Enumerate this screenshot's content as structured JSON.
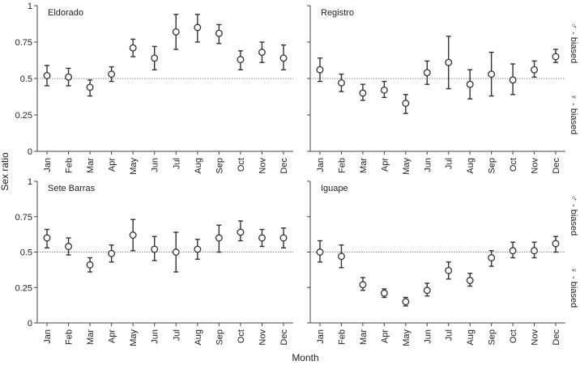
{
  "figure": {
    "ylabel": "Sex ratio",
    "xlabel": "Month",
    "male_label": "♂ - biased",
    "female_label": "♀ - biased"
  },
  "chart_data": [
    {
      "type": "scatter",
      "title": "Eldorado",
      "categories": [
        "Jan",
        "Feb",
        "Mar",
        "Apr",
        "May",
        "Jun",
        "Jul",
        "Aug",
        "Sep",
        "Oct",
        "Nov",
        "Dec"
      ],
      "values": [
        0.52,
        0.51,
        0.44,
        0.53,
        0.71,
        0.64,
        0.82,
        0.85,
        0.81,
        0.63,
        0.68,
        0.64
      ],
      "lower": [
        0.45,
        0.45,
        0.38,
        0.48,
        0.65,
        0.56,
        0.7,
        0.75,
        0.74,
        0.56,
        0.61,
        0.56
      ],
      "upper": [
        0.59,
        0.57,
        0.49,
        0.58,
        0.77,
        0.72,
        0.94,
        0.94,
        0.87,
        0.69,
        0.75,
        0.73
      ],
      "reference": 0.5,
      "ylim": [
        0,
        1
      ],
      "yticks": [
        0,
        0.25,
        0.5,
        0.75,
        1
      ],
      "ytick_labels": [
        "0",
        "0.25",
        "0.5",
        "0.75",
        "1"
      ]
    },
    {
      "type": "scatter",
      "title": "Registro",
      "categories": [
        "Jan",
        "Feb",
        "Mar",
        "Apr",
        "May",
        "Jun",
        "Jul",
        "Aug",
        "Sep",
        "Oct",
        "Nov",
        "Dec"
      ],
      "values": [
        0.56,
        0.47,
        0.4,
        0.42,
        0.33,
        0.54,
        0.61,
        0.46,
        0.53,
        0.49,
        0.56,
        0.65
      ],
      "lower": [
        0.48,
        0.41,
        0.35,
        0.37,
        0.26,
        0.46,
        0.43,
        0.36,
        0.38,
        0.39,
        0.51,
        0.61
      ],
      "upper": [
        0.64,
        0.53,
        0.46,
        0.48,
        0.39,
        0.62,
        0.79,
        0.56,
        0.68,
        0.6,
        0.62,
        0.7
      ],
      "reference": 0.5,
      "ylim": [
        0,
        1
      ],
      "yticks": [
        0,
        0.25,
        0.5,
        0.75,
        1
      ],
      "ytick_labels": [
        "",
        "",
        "",
        "",
        ""
      ]
    },
    {
      "type": "scatter",
      "title": "Sete Barras",
      "categories": [
        "Jan",
        "Feb",
        "Mar",
        "Apr",
        "May",
        "Jun",
        "Jul",
        "Aug",
        "Sep",
        "Oct",
        "Nov",
        "Dec"
      ],
      "values": [
        0.6,
        0.54,
        0.41,
        0.49,
        0.62,
        0.52,
        0.5,
        0.52,
        0.6,
        0.64,
        0.6,
        0.6
      ],
      "lower": [
        0.53,
        0.48,
        0.36,
        0.43,
        0.51,
        0.44,
        0.36,
        0.45,
        0.5,
        0.58,
        0.54,
        0.53
      ],
      "upper": [
        0.66,
        0.6,
        0.46,
        0.55,
        0.73,
        0.61,
        0.64,
        0.59,
        0.69,
        0.72,
        0.66,
        0.67
      ],
      "reference": 0.5,
      "ylim": [
        0,
        1
      ],
      "yticks": [
        0,
        0.25,
        0.5,
        0.75,
        1
      ],
      "ytick_labels": [
        "0",
        "0.25",
        "0.5",
        "0.75",
        "1"
      ]
    },
    {
      "type": "scatter",
      "title": "Iguape",
      "categories": [
        "Jan",
        "Feb",
        "Mar",
        "Apr",
        "May",
        "Jun",
        "Jul",
        "Aug",
        "Sep",
        "Oct",
        "Nov",
        "Dec"
      ],
      "values": [
        0.5,
        0.47,
        0.27,
        0.21,
        0.15,
        0.23,
        0.37,
        0.3,
        0.46,
        0.51,
        0.51,
        0.56
      ],
      "lower": [
        0.43,
        0.39,
        0.23,
        0.18,
        0.12,
        0.19,
        0.31,
        0.26,
        0.4,
        0.46,
        0.46,
        0.5
      ],
      "upper": [
        0.58,
        0.55,
        0.32,
        0.24,
        0.18,
        0.28,
        0.43,
        0.35,
        0.51,
        0.57,
        0.57,
        0.61
      ],
      "reference": 0.5,
      "ylim": [
        0,
        1
      ],
      "yticks": [
        0,
        0.25,
        0.5,
        0.75,
        1
      ],
      "ytick_labels": [
        "",
        "",
        "",
        "",
        ""
      ]
    }
  ]
}
